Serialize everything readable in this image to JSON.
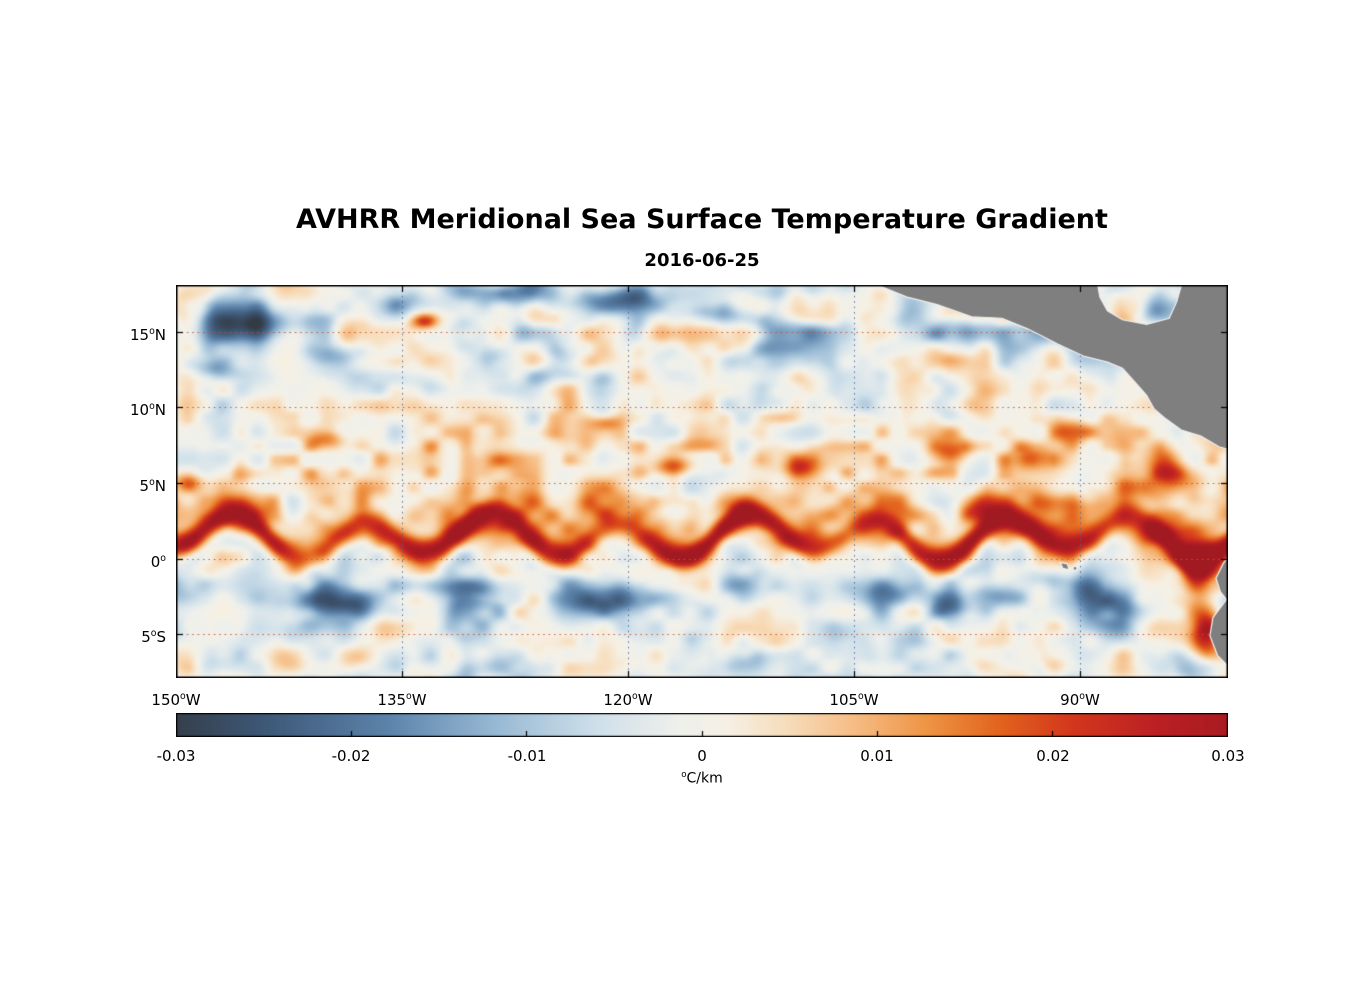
{
  "chart_data": {
    "type": "heatmap",
    "title": "AVHRR Meridional Sea Surface Temperature Gradient",
    "subtitle": "2016-06-25",
    "lon_range": [
      -150,
      -80.2
    ],
    "lat_range": [
      -7.9,
      18.1
    ],
    "xticks": [
      {
        "v": -150,
        "num": "150",
        "sup": "o",
        "suffix": "W"
      },
      {
        "v": -135,
        "num": "135",
        "sup": "o",
        "suffix": "W"
      },
      {
        "v": -120,
        "num": "120",
        "sup": "o",
        "suffix": "W"
      },
      {
        "v": -105,
        "num": "105",
        "sup": "o",
        "suffix": "W"
      },
      {
        "v": -90,
        "num": "90",
        "sup": "o",
        "suffix": "W"
      }
    ],
    "yticks": [
      {
        "v": 15,
        "num": "15",
        "sup": "o",
        "suffix": "N"
      },
      {
        "v": 10,
        "num": "10",
        "sup": "o",
        "suffix": "N"
      },
      {
        "v": 5,
        "num": "5",
        "sup": "o",
        "suffix": "N"
      },
      {
        "v": 0,
        "num": "0",
        "sup": "o",
        "suffix": ""
      },
      {
        "v": -5,
        "num": "5",
        "sup": "o",
        "suffix": "S"
      }
    ],
    "colorbar": {
      "min": -0.03,
      "max": 0.03,
      "ticks": [
        -0.03,
        -0.02,
        -0.01,
        0,
        0.01,
        0.02,
        0.03
      ],
      "tick_labels": [
        "-0.03",
        "-0.02",
        "-0.01",
        "0",
        "0.01",
        "0.02",
        "0.03"
      ],
      "label": "°C/km",
      "unit_sup": "o",
      "unit_main": "C/km"
    },
    "colormap": [
      [
        -0.031,
        "#333b44"
      ],
      [
        -0.025,
        "#3e5877"
      ],
      [
        -0.018,
        "#5c83ab"
      ],
      [
        -0.012,
        "#96b8d3"
      ],
      [
        -0.006,
        "#cfe0ea"
      ],
      [
        -0.0015,
        "#eef0ec"
      ],
      [
        0.0015,
        "#f6f0e4"
      ],
      [
        0.005,
        "#f7dcba"
      ],
      [
        0.009,
        "#f6ba80"
      ],
      [
        0.013,
        "#ee9343"
      ],
      [
        0.017,
        "#e3641e"
      ],
      [
        0.021,
        "#d4381d"
      ],
      [
        0.026,
        "#bc2024"
      ],
      [
        0.0315,
        "#a21a21"
      ]
    ],
    "grid": {
      "h_color": "rgba(204,82,38,0.9)",
      "v_color": "rgba(76,108,158,0.9)",
      "dash": [
        1.6,
        3.8
      ]
    },
    "land": {
      "color": "#7f7f7f",
      "outline": "#f0f0f0",
      "central_america": [
        [
          -104.2,
          18.4
        ],
        [
          -101.5,
          17.3
        ],
        [
          -99.5,
          16.8
        ],
        [
          -97.2,
          16.0
        ],
        [
          -95.2,
          15.9
        ],
        [
          -93.5,
          15.2
        ],
        [
          -91.5,
          14.2
        ],
        [
          -89.8,
          13.4
        ],
        [
          -88.2,
          13.0
        ],
        [
          -87.2,
          12.6
        ],
        [
          -86.4,
          11.7
        ],
        [
          -85.6,
          10.8
        ],
        [
          -85.1,
          9.9
        ],
        [
          -84.4,
          9.3
        ],
        [
          -83.3,
          8.5
        ],
        [
          -82.0,
          8.1
        ],
        [
          -80.8,
          7.4
        ],
        [
          -79.8,
          7.1
        ],
        [
          -79.8,
          18.4
        ],
        [
          -83.2,
          18.4
        ],
        [
          -83.6,
          17.0
        ],
        [
          -84.1,
          15.9
        ],
        [
          -85.6,
          15.5
        ],
        [
          -87.2,
          15.8
        ],
        [
          -88.2,
          16.4
        ],
        [
          -88.7,
          17.3
        ],
        [
          -88.9,
          18.4
        ]
      ],
      "south_america": [
        [
          -79.8,
          0.6
        ],
        [
          -80.5,
          -0.3
        ],
        [
          -81.0,
          -1.3
        ],
        [
          -80.7,
          -2.2
        ],
        [
          -80.3,
          -2.7
        ],
        [
          -81.2,
          -3.9
        ],
        [
          -81.4,
          -5.1
        ],
        [
          -80.9,
          -6.4
        ],
        [
          -80.1,
          -7.2
        ],
        [
          -79.8,
          -8.1
        ]
      ],
      "galapagos": [
        [
          -91.35,
          -0.25
        ],
        [
          -90.85,
          -0.35
        ],
        [
          -90.75,
          -0.75
        ],
        [
          -91.15,
          -0.65
        ]
      ],
      "galapagos_dot": [
        -90.35,
        -0.65
      ]
    },
    "field": {
      "noise": {
        "amp1": 0.014,
        "scale1": 2.3,
        "amp2": 0.009,
        "scale2": 1.15
      },
      "front": {
        "lat": 1.45,
        "a1": 1.15,
        "wl1": 8.5,
        "p1": -1.38,
        "a2": 0.45,
        "wl2": 19.5,
        "p2": 1.2,
        "amp": 0.035,
        "swl": 17,
        "sp": 0.6,
        "sigma": 0.9,
        "halo_amp": 0.009,
        "halo_dy": 1.9,
        "halo_sigma": 1.4
      },
      "south": {
        "lat": -2.7,
        "sigma": 1.8,
        "amp": -0.013,
        "wl": 10.5,
        "phase": 2.4
      },
      "north": {
        "lat": 15.5,
        "sigma": 2.4,
        "neg_gain": 0.022,
        "pos_gain": 0.005
      },
      "necc": {
        "lat": 6.3,
        "sigma": 2.6,
        "amp": 0.006
      },
      "clamp": [
        -0.031,
        0.0315
      ],
      "blobs": [
        [
          -144.5,
          15.6,
          3.0,
          1.1,
          -0.018
        ],
        [
          -139.5,
          13.2,
          2.0,
          0.8,
          -0.014
        ],
        [
          -134.5,
          16.8,
          2.2,
          0.8,
          -0.016
        ],
        [
          -127.5,
          17.5,
          2.8,
          0.9,
          -0.019
        ],
        [
          -120.5,
          17.0,
          3.2,
          0.9,
          -0.02
        ],
        [
          -113.5,
          16.2,
          2.0,
          0.8,
          -0.014
        ],
        [
          -125.0,
          12.1,
          1.6,
          0.7,
          -0.011
        ],
        [
          -147.5,
          12.5,
          1.5,
          0.7,
          -0.012
        ],
        [
          -139.0,
          -2.9,
          3.5,
          1.0,
          -0.017
        ],
        [
          -130.5,
          -1.9,
          2.4,
          0.8,
          -0.014
        ],
        [
          -121.0,
          -2.7,
          3.0,
          1.1,
          -0.018
        ],
        [
          -112.5,
          -1.7,
          2.0,
          0.8,
          -0.013
        ],
        [
          -103.0,
          -2.3,
          2.2,
          0.9,
          -0.013
        ],
        [
          -95.5,
          -2.5,
          2.0,
          0.8,
          -0.014
        ],
        [
          -88.0,
          -3.2,
          2.4,
          1.2,
          -0.016
        ],
        [
          -92.5,
          -1.4,
          1.5,
          0.7,
          -0.012
        ],
        [
          -82.6,
          -7.4,
          1.4,
          0.9,
          -0.016
        ],
        [
          -128.0,
          -7.3,
          3.0,
          0.8,
          -0.011
        ],
        [
          -111.5,
          -7.0,
          2.2,
          0.7,
          -0.009
        ],
        [
          -149.2,
          5.0,
          1.1,
          0.6,
          0.016
        ],
        [
          -133.6,
          15.7,
          0.8,
          0.5,
          0.018
        ],
        [
          -121.5,
          9.0,
          1.0,
          0.5,
          0.014
        ],
        [
          -117.0,
          6.1,
          1.3,
          0.6,
          0.015
        ],
        [
          -108.5,
          6.0,
          1.1,
          0.6,
          0.014
        ],
        [
          -98.5,
          7.2,
          1.5,
          0.8,
          0.014
        ],
        [
          -93.3,
          6.6,
          1.3,
          0.7,
          0.016
        ],
        [
          -90.6,
          8.4,
          1.4,
          0.9,
          0.018
        ],
        [
          -96.5,
          3.4,
          1.6,
          0.9,
          0.02
        ],
        [
          -84.0,
          6.0,
          1.2,
          1.3,
          0.02
        ],
        [
          -110.0,
          9.3,
          1.1,
          0.5,
          0.012
        ],
        [
          -140.0,
          7.8,
          1.2,
          0.6,
          0.012
        ],
        [
          -82.3,
          -0.6,
          1.1,
          1.9,
          0.032
        ],
        [
          -81.6,
          -4.9,
          1.0,
          1.7,
          0.028
        ],
        [
          -84.8,
          1.6,
          2.0,
          0.9,
          0.022
        ]
      ]
    }
  }
}
